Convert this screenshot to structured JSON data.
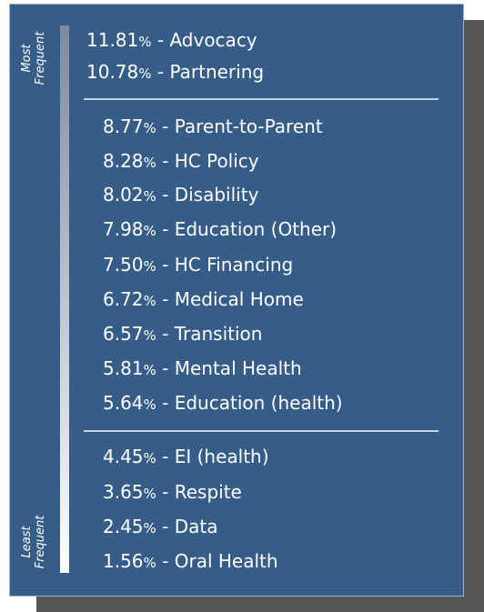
{
  "scale": {
    "top": "Most Frequent",
    "bottom": "Least Frequent"
  },
  "groups": [
    {
      "items": [
        {
          "value": "11.81",
          "unit": "%",
          "text": " - Advocacy"
        },
        {
          "value": "10.78",
          "unit": "%",
          "text": " - Partnering"
        }
      ]
    },
    {
      "items": [
        {
          "value": "8.77",
          "unit": "%",
          "text": " - Parent-to-Parent"
        },
        {
          "value": "8.28",
          "unit": "%",
          "text": " - HC Policy"
        },
        {
          "value": "8.02",
          "unit": "%",
          "text": " - Disability"
        },
        {
          "value": "7.98",
          "unit": "%",
          "text": " - Education (Other)"
        },
        {
          "value": "7.50",
          "unit": "%",
          "text": " - HC Financing"
        },
        {
          "value": "6.72",
          "unit": "%",
          "text": " - Medical Home"
        },
        {
          "value": "6.57",
          "unit": "%",
          "text": " - Transition"
        },
        {
          "value": "5.81",
          "unit": "%",
          "text": " - Mental Health"
        },
        {
          "value": "5.64",
          "unit": "%",
          "text": " - Education (health)"
        }
      ]
    },
    {
      "items": [
        {
          "value": "4.45",
          "unit": "%",
          "text": " - EI (health)"
        },
        {
          "value": "3.65",
          "unit": "%",
          "text": " - Respite"
        },
        {
          "value": "2.45",
          "unit": "%",
          "text": " - Data"
        },
        {
          "value": "1.56",
          "unit": "%",
          "text": " - Oral Health"
        }
      ]
    }
  ]
}
